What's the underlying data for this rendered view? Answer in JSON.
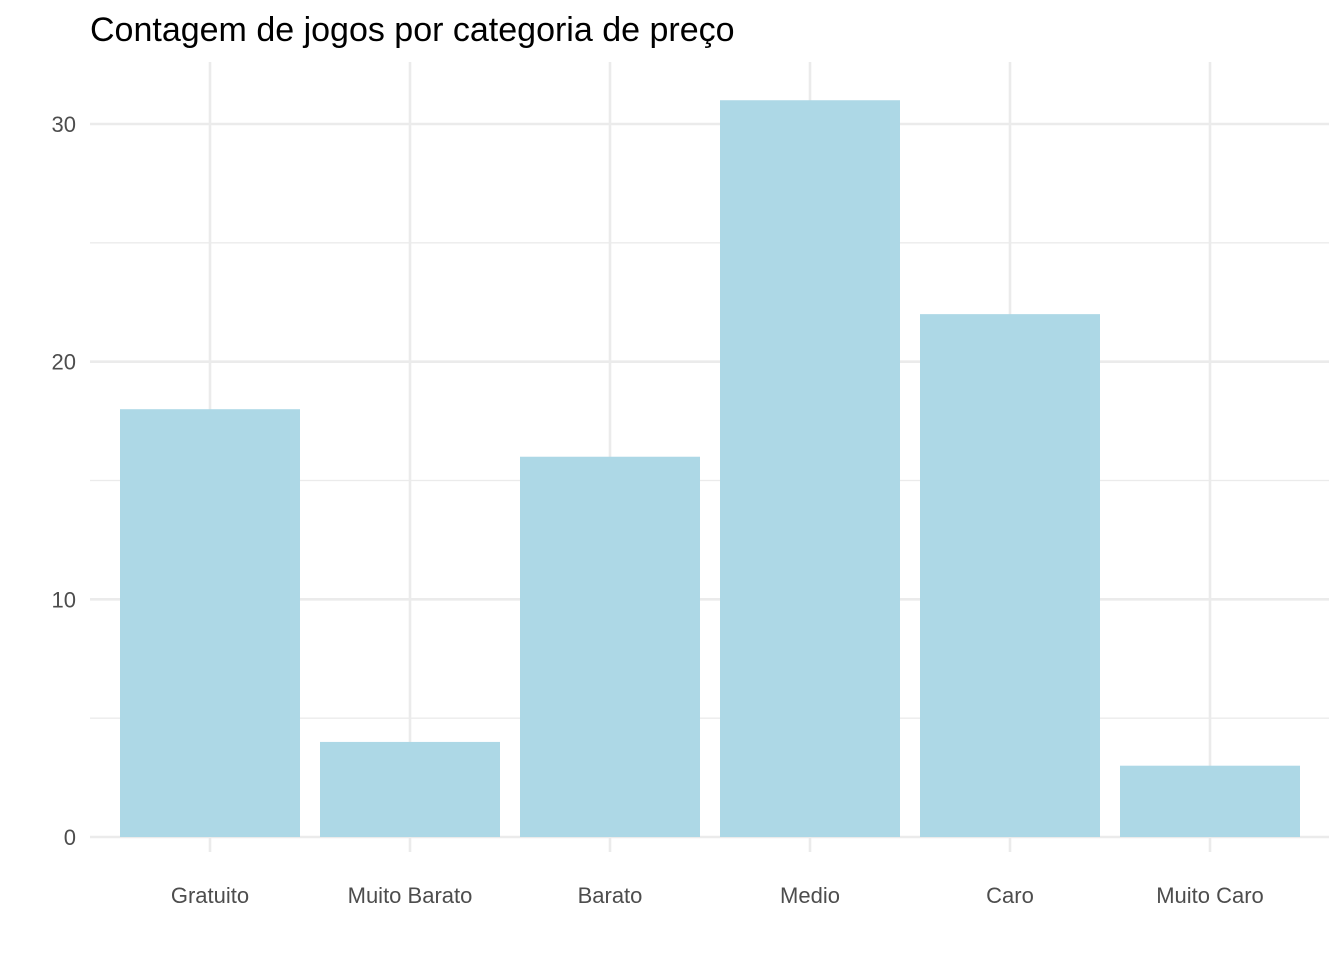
{
  "chart_data": {
    "type": "bar",
    "title": "Contagem de jogos por categoria de preço",
    "xlabel": "",
    "ylabel": "",
    "categories": [
      "Gratuito",
      "Muito Barato",
      "Barato",
      "Medio",
      "Caro",
      "Muito Caro"
    ],
    "values": [
      18,
      4,
      16,
      31,
      22,
      3
    ],
    "ylim": [
      0,
      32.5
    ],
    "yticks": [
      0,
      10,
      20,
      30
    ],
    "y_minor_ticks": [
      5,
      15,
      25
    ],
    "grid": true,
    "legend": "none",
    "bar_color": "#add8e6",
    "grid_color": "#ebebeb"
  }
}
